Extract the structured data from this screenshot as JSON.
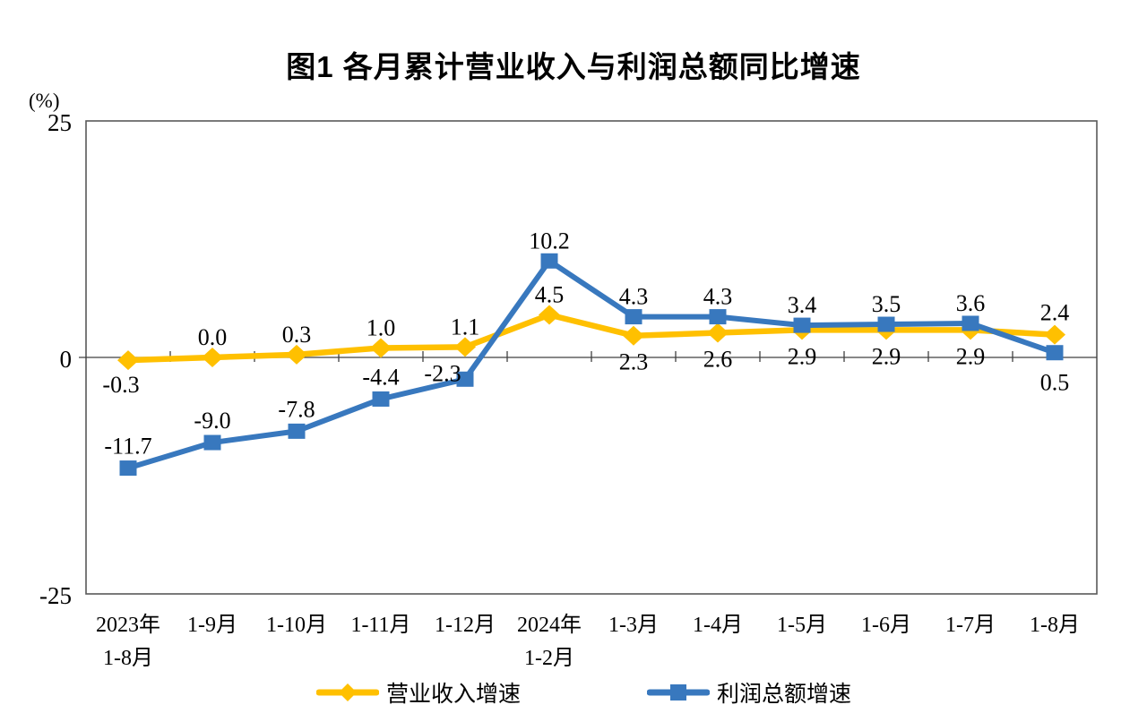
{
  "title": "图1  各月累计营业收入与利润总额同比增速",
  "y_axis": {
    "unit_label": "(%)",
    "ticks": [
      "25",
      "0",
      "-25"
    ]
  },
  "colors": {
    "revenue_line": "#FFC000",
    "profit_line": "#3878BE",
    "frame": "#595959",
    "axis": "#404040",
    "label_text": "#000000"
  },
  "legend": {
    "items": [
      {
        "label": "营业收入增速",
        "marker": "diamond",
        "color": "#FFC000"
      },
      {
        "label": "利润总额增速",
        "marker": "square",
        "color": "#3878BE"
      }
    ]
  },
  "chart_data": {
    "type": "line",
    "title": "图1  各月累计营业收入与利润总额同比增速",
    "categories": [
      "2023年\n1-8月",
      "1-9月",
      "1-10月",
      "1-11月",
      "1-12月",
      "2024年\n1-2月",
      "1-3月",
      "1-4月",
      "1-5月",
      "1-6月",
      "1-7月",
      "1-8月"
    ],
    "series": [
      {
        "name": "营业收入增速",
        "color": "#FFC000",
        "marker": "diamond",
        "values": [
          -0.3,
          0.0,
          0.3,
          1.0,
          1.1,
          4.5,
          2.3,
          2.6,
          2.9,
          2.9,
          2.9,
          2.4
        ]
      },
      {
        "name": "利润总额增速",
        "color": "#3878BE",
        "marker": "square",
        "values": [
          -11.7,
          -9.0,
          -7.8,
          -4.4,
          -2.3,
          10.2,
          4.3,
          4.3,
          3.4,
          3.5,
          3.6,
          0.5
        ]
      }
    ],
    "xlabel": "",
    "ylabel": "(%)",
    "ylim": [
      -25,
      25
    ],
    "y_ticks": [
      25,
      0,
      -25
    ],
    "grid": false,
    "data_labels": true,
    "legend_position": "bottom"
  }
}
